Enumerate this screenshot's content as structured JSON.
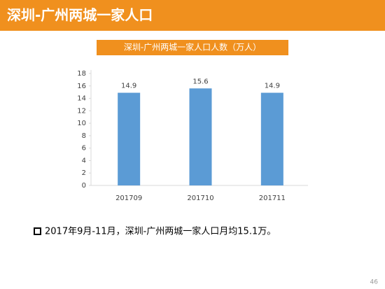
{
  "header": {
    "title": "深圳-广州两城一家人口"
  },
  "chart_data": {
    "type": "bar",
    "title": "深圳-广州两城一家人口人数（万人）",
    "categories": [
      "201709",
      "201710",
      "201711"
    ],
    "values": [
      14.9,
      15.6,
      14.9
    ],
    "color": "#5b9bd5",
    "ylim": [
      0,
      18
    ],
    "yticks": [
      0,
      2,
      4,
      6,
      8,
      10,
      12,
      14,
      16,
      18
    ],
    "grid": false,
    "data_labels": true
  },
  "note": "2017年9月-11月，深圳-广州两城一家人口月均15.1万。",
  "page_number": "46"
}
